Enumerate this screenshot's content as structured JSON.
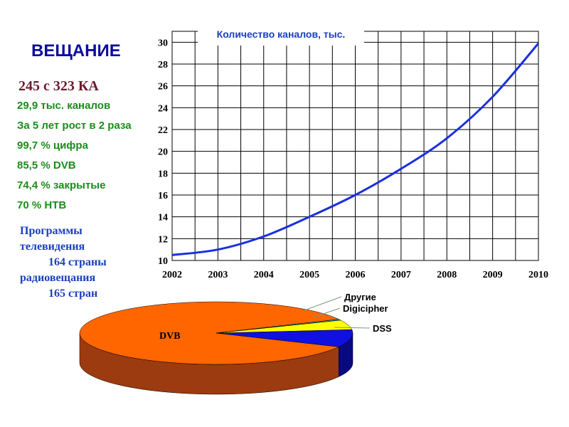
{
  "page": {
    "title": "ВЕЩАНИЕ",
    "stats": [
      "245 с 323 КА",
      "29,9 тыс. каналов",
      "За 5 лет рост в 2 раза",
      "99,7 % цифра",
      "85,5 % DVB",
      "74,4 % закрытые",
      "70 % НТВ"
    ],
    "programs": {
      "tv_label": "Программы телевидения",
      "tv_count": "164 страны",
      "radio_label": "радиовещания",
      "radio_count": "165 стран"
    }
  },
  "chart_data": [
    {
      "type": "line",
      "title": "Количество каналов, тыс.",
      "x": [
        2002,
        2003,
        2004,
        2005,
        2006,
        2007,
        2008,
        2009,
        2010
      ],
      "series": [
        {
          "values": [
            10.5,
            11.0,
            12.2,
            14.0,
            16.0,
            18.4,
            21.2,
            25.0,
            29.9
          ],
          "color": "#1a2fe0"
        }
      ],
      "xlim": [
        2002,
        2010
      ],
      "ylim": [
        10,
        30
      ],
      "yticks": [
        10,
        12,
        14,
        16,
        18,
        20,
        22,
        24,
        26,
        28,
        30
      ],
      "grid": true
    },
    {
      "type": "pie",
      "style": "3d",
      "slices": [
        {
          "label": "DVB",
          "value": 85.5,
          "color": "#ff6600",
          "side_color": "#9c3a10"
        },
        {
          "label": "DSS",
          "value": 9.0,
          "color": "#1010e0",
          "side_color": "#0a0a80"
        },
        {
          "label": "Digicipher",
          "value": 5.0,
          "color": "#ffff00",
          "side_color": "#a0a000"
        },
        {
          "label": "Другие",
          "value": 0.5,
          "color": "#20a0a0",
          "side_color": "#106060"
        }
      ]
    }
  ]
}
